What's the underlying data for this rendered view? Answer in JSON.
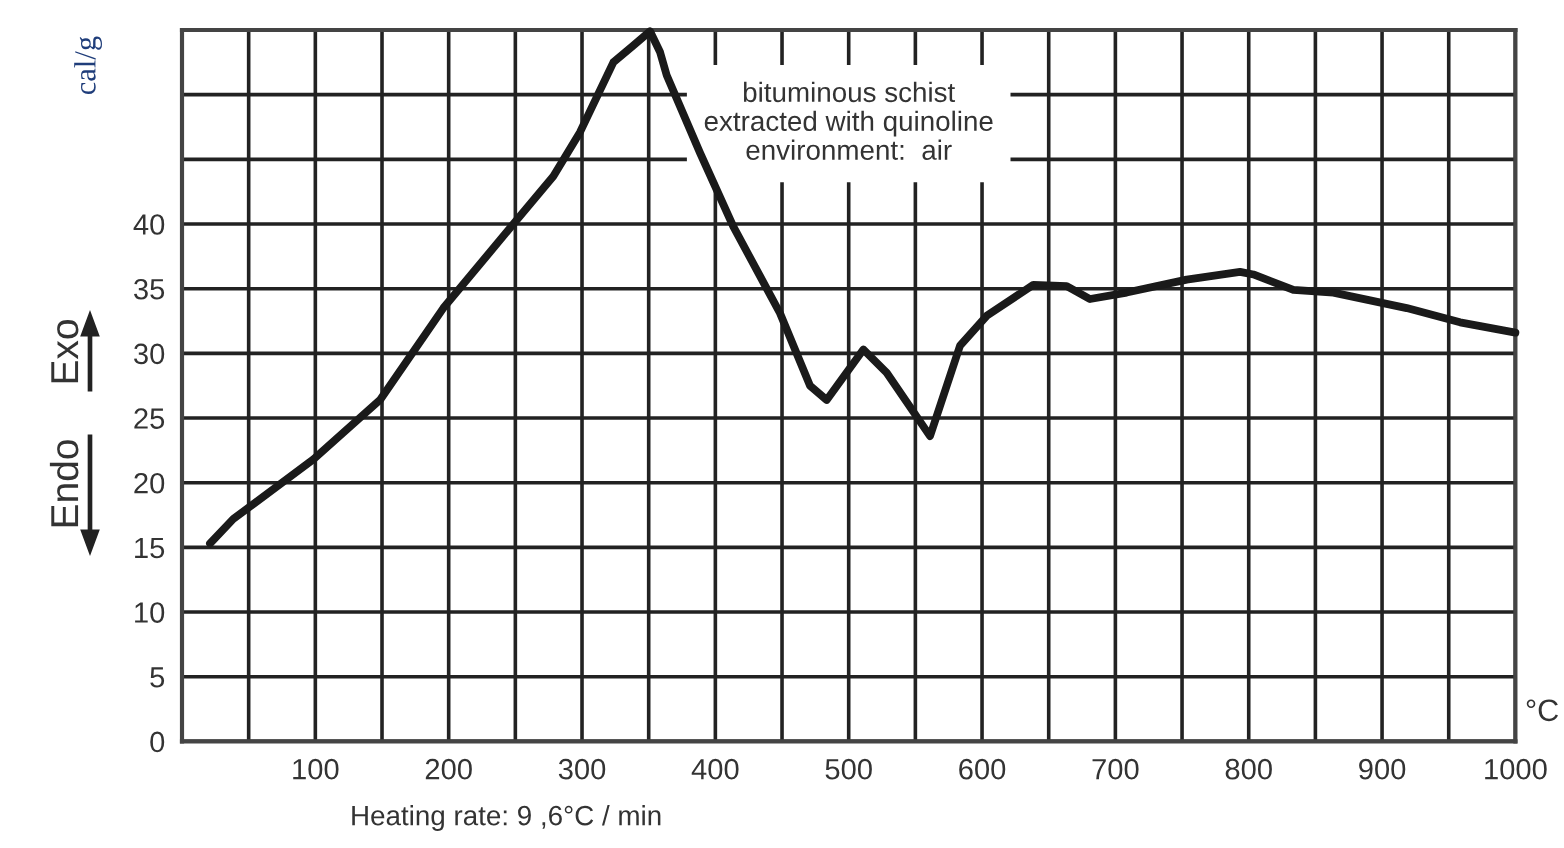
{
  "chart_data": {
    "type": "line",
    "ylabel": "cal/g",
    "xlabel": "°C",
    "annotations": [
      "bituminous schist\nextracted with quinoline\nenvironment:  air",
      "Exo",
      "Endo",
      "Heating rate: 9 ,6°C / min"
    ],
    "xlim": [
      0,
      1000
    ],
    "xticks": [
      {
        "value": 0,
        "label": null
      },
      {
        "value": 50,
        "label": null
      },
      100,
      {
        "value": 150,
        "label": null
      },
      200,
      {
        "value": 250,
        "label": null
      },
      300,
      {
        "value": 350,
        "label": null
      },
      400,
      {
        "value": 450,
        "label": null
      },
      500,
      {
        "value": 550,
        "label": null
      },
      600,
      {
        "value": 650,
        "label": null
      },
      700,
      {
        "value": 750,
        "label": null
      },
      800,
      {
        "value": 850,
        "label": null
      },
      900,
      {
        "value": 950,
        "label": null
      },
      1000
    ],
    "ylim": [
      0,
      55
    ],
    "yticks": [
      0,
      5,
      10,
      15,
      20,
      25,
      30,
      35,
      40,
      {
        "value": 45,
        "label": null
      },
      {
        "value": 50,
        "label": null
      },
      {
        "value": 55,
        "label": null
      }
    ],
    "grid": true,
    "marker": "none",
    "line_style": "solid",
    "series": [
      {
        "color": "#1a1a1a",
        "x": [
          21,
          38.5,
          98.5,
          148.5,
          196,
          248.5,
          278.5,
          298.5,
          323.5,
          338.5,
          351,
          358.5,
          363.5,
          388.5,
          413.5,
          448.5,
          471,
          483.5,
          511,
          528.5,
          561,
          583.5,
          603.5,
          638.5,
          663.5,
          681,
          708.5,
          753.5,
          793.5,
          803.5,
          833.5,
          863.5,
          918.5,
          958.5,
          1000
        ],
        "values": [
          15.3,
          17.2,
          21.8,
          26.4,
          33.5,
          40.0,
          43.7,
          47.1,
          52.5,
          53.8,
          54.9,
          53.3,
          51.5,
          45.5,
          39.8,
          33.1,
          27.5,
          26.4,
          30.3,
          28.5,
          23.6,
          30.6,
          32.9,
          35.3,
          35.2,
          34.2,
          34.7,
          35.7,
          36.3,
          36.1,
          34.9,
          34.7,
          33.5,
          32.4,
          31.6
        ]
      }
    ]
  }
}
